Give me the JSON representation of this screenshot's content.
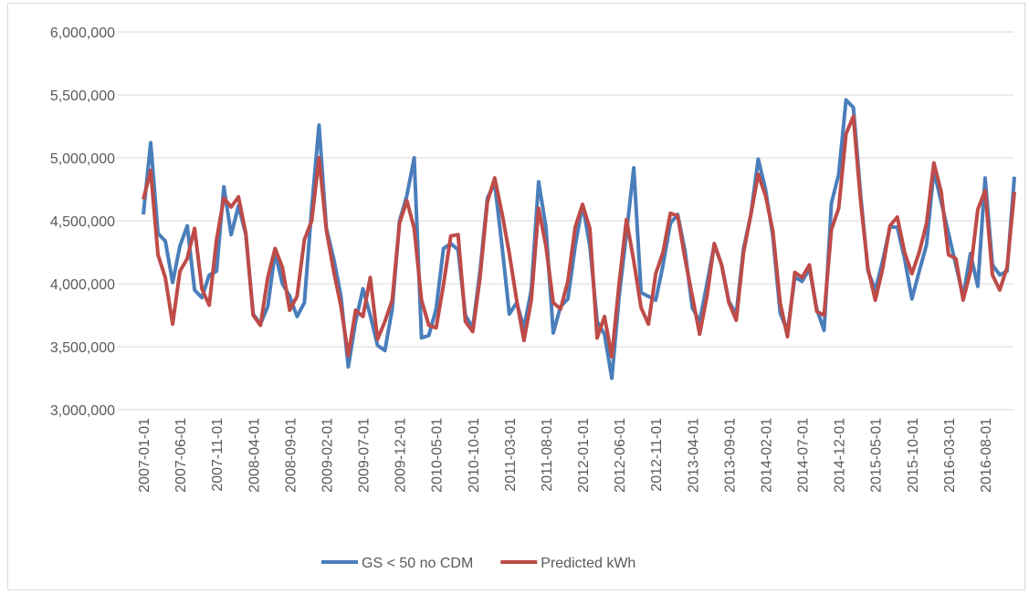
{
  "chart_data": {
    "type": "line",
    "categories": [
      "2007-01-01",
      null,
      null,
      null,
      null,
      "2007-06-01",
      null,
      null,
      null,
      null,
      "2007-11-01",
      null,
      null,
      null,
      null,
      "2008-04-01",
      null,
      null,
      null,
      null,
      "2008-09-01",
      null,
      null,
      null,
      null,
      "2009-02-01",
      null,
      null,
      null,
      null,
      "2009-07-01",
      null,
      null,
      null,
      null,
      "2009-12-01",
      null,
      null,
      null,
      null,
      "2010-05-01",
      null,
      null,
      null,
      null,
      "2010-10-01",
      null,
      null,
      null,
      null,
      "2011-03-01",
      null,
      null,
      null,
      null,
      "2011-08-01",
      null,
      null,
      null,
      null,
      "2012-01-01",
      null,
      null,
      null,
      null,
      "2012-06-01",
      null,
      null,
      null,
      null,
      "2012-11-01",
      null,
      null,
      null,
      null,
      "2013-04-01",
      null,
      null,
      null,
      null,
      "2013-09-01",
      null,
      null,
      null,
      null,
      "2014-02-01",
      null,
      null,
      null,
      null,
      "2014-07-01",
      null,
      null,
      null,
      null,
      "2014-12-01",
      null,
      null,
      null,
      null,
      "2015-05-01",
      null,
      null,
      null,
      null,
      "2015-10-01",
      null,
      null,
      null,
      null,
      "2016-03-01",
      null,
      null,
      null,
      null,
      "2016-08-01",
      null,
      null,
      null,
      null
    ],
    "series": [
      {
        "name": "GS < 50 no CDM",
        "color": "#4a7ebb",
        "values": [
          4550000,
          5120000,
          4400000,
          4340000,
          4010000,
          4300000,
          4460000,
          3950000,
          3890000,
          4070000,
          4100000,
          4770000,
          4390000,
          4620000,
          4390000,
          3760000,
          3680000,
          3820000,
          4250000,
          4000000,
          3900000,
          3740000,
          3850000,
          4600000,
          5260000,
          4440000,
          4200000,
          3900000,
          3340000,
          3700000,
          3960000,
          3750000,
          3510000,
          3470000,
          3800000,
          4500000,
          4700000,
          5000000,
          3570000,
          3590000,
          3800000,
          4280000,
          4320000,
          4270000,
          3750000,
          3650000,
          4100000,
          4680000,
          4800000,
          4300000,
          3760000,
          3850000,
          3650000,
          3950000,
          4810000,
          4450000,
          3610000,
          3820000,
          3880000,
          4300000,
          4630000,
          4300000,
          3700000,
          3600000,
          3250000,
          3900000,
          4400000,
          4920000,
          3930000,
          3900000,
          3870000,
          4150000,
          4480000,
          4550000,
          4260000,
          3810000,
          3700000,
          4000000,
          4310000,
          4150000,
          3860000,
          3760000,
          4280000,
          4550000,
          4990000,
          4750000,
          4380000,
          3770000,
          3620000,
          4050000,
          4020000,
          4120000,
          3800000,
          3630000,
          4640000,
          4870000,
          5460000,
          5400000,
          4700000,
          4100000,
          3950000,
          4180000,
          4450000,
          4450000,
          4200000,
          3880000,
          4100000,
          4310000,
          4900000,
          4650000,
          4400000,
          4150000,
          3900000,
          4240000,
          3980000,
          4840000,
          4150000,
          4070000,
          4100000,
          4850000
        ]
      },
      {
        "name": "Predicted kWh",
        "color": "#be4b48",
        "values": [
          4670000,
          4900000,
          4230000,
          4050000,
          3680000,
          4100000,
          4200000,
          4440000,
          3960000,
          3830000,
          4350000,
          4680000,
          4610000,
          4690000,
          4400000,
          3750000,
          3670000,
          4050000,
          4280000,
          4130000,
          3790000,
          3900000,
          4350000,
          4500000,
          5000000,
          4430000,
          4100000,
          3820000,
          3430000,
          3790000,
          3740000,
          4050000,
          3560000,
          3700000,
          3870000,
          4480000,
          4660000,
          4440000,
          3870000,
          3670000,
          3650000,
          3990000,
          4380000,
          4390000,
          3700000,
          3620000,
          4050000,
          4650000,
          4840000,
          4560000,
          4240000,
          3870000,
          3550000,
          3870000,
          4600000,
          4300000,
          3850000,
          3800000,
          4020000,
          4450000,
          4630000,
          4440000,
          3570000,
          3740000,
          3420000,
          4000000,
          4510000,
          4180000,
          3810000,
          3680000,
          4080000,
          4250000,
          4560000,
          4540000,
          4200000,
          3900000,
          3600000,
          3900000,
          4320000,
          4150000,
          3850000,
          3710000,
          4250000,
          4550000,
          4870000,
          4700000,
          4420000,
          3850000,
          3580000,
          4090000,
          4050000,
          4150000,
          3780000,
          3750000,
          4430000,
          4600000,
          5190000,
          5330000,
          4650000,
          4120000,
          3870000,
          4120000,
          4460000,
          4530000,
          4250000,
          4080000,
          4250000,
          4480000,
          4960000,
          4730000,
          4230000,
          4200000,
          3870000,
          4100000,
          4590000,
          4740000,
          4070000,
          3950000,
          4130000,
          4730000
        ]
      }
    ],
    "ylim": [
      3000000,
      6000000
    ],
    "yticks": [
      {
        "value": 3000000,
        "label": "3,000,000"
      },
      {
        "value": 3500000,
        "label": "3,500,000"
      },
      {
        "value": 4000000,
        "label": "4,000,000"
      },
      {
        "value": 4500000,
        "label": "4,500,000"
      },
      {
        "value": 5000000,
        "label": "5,000,000"
      },
      {
        "value": 5500000,
        "label": "5,500,000"
      },
      {
        "value": 6000000,
        "label": "6,000,000"
      }
    ],
    "grid": true,
    "legend": "bottom"
  }
}
